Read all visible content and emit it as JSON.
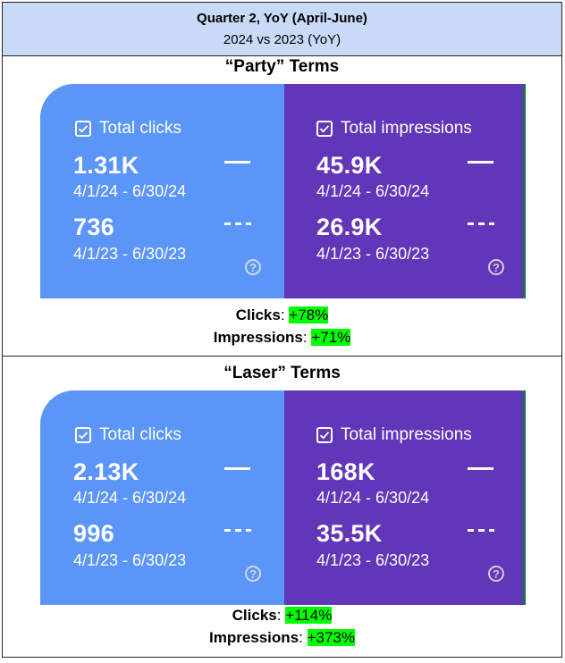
{
  "header": {
    "title": "Quarter 2, YoY (April-June)",
    "subtitle": "2024 vs 2023 (YoY)"
  },
  "sections": [
    {
      "title": "“Party” Terms",
      "clicks": {
        "label": "Total clicks",
        "current_value": "1.31K",
        "current_range": "4/1/24 - 6/30/24",
        "previous_value": "736",
        "previous_range": "4/1/23 - 6/30/23"
      },
      "impressions": {
        "label": "Total impressions",
        "current_value": "45.9K",
        "current_range": "4/1/24 - 6/30/24",
        "previous_value": "26.9K",
        "previous_range": "4/1/23 - 6/30/23"
      },
      "clicks_change_label": "Clicks",
      "clicks_change": "+78%",
      "impressions_change_label": "Impressions",
      "impressions_change": "+71%"
    },
    {
      "title": "“Laser” Terms",
      "clicks": {
        "label": "Total clicks",
        "current_value": "2.13K",
        "current_range": "4/1/24 - 6/30/24",
        "previous_value": "996",
        "previous_range": "4/1/23 - 6/30/23"
      },
      "impressions": {
        "label": "Total impressions",
        "current_value": "168K",
        "current_range": "4/1/24 - 6/30/24",
        "previous_value": "35.5K",
        "previous_range": "4/1/23 - 6/30/23"
      },
      "clicks_change_label": "Clicks",
      "clicks_change": "+114%",
      "impressions_change_label": "Impressions",
      "impressions_change": "+373%"
    }
  ],
  "colors": {
    "header_bg": "#c9daf8",
    "clicks_panel": "#5b95f7",
    "impressions_panel": "#6136b8",
    "highlight": "#00ff00"
  },
  "icons": {
    "checkbox": "checkbox-checked-icon",
    "help": "help-circle-icon",
    "current_series": "solid-line-icon",
    "previous_series": "dashed-line-icon"
  }
}
